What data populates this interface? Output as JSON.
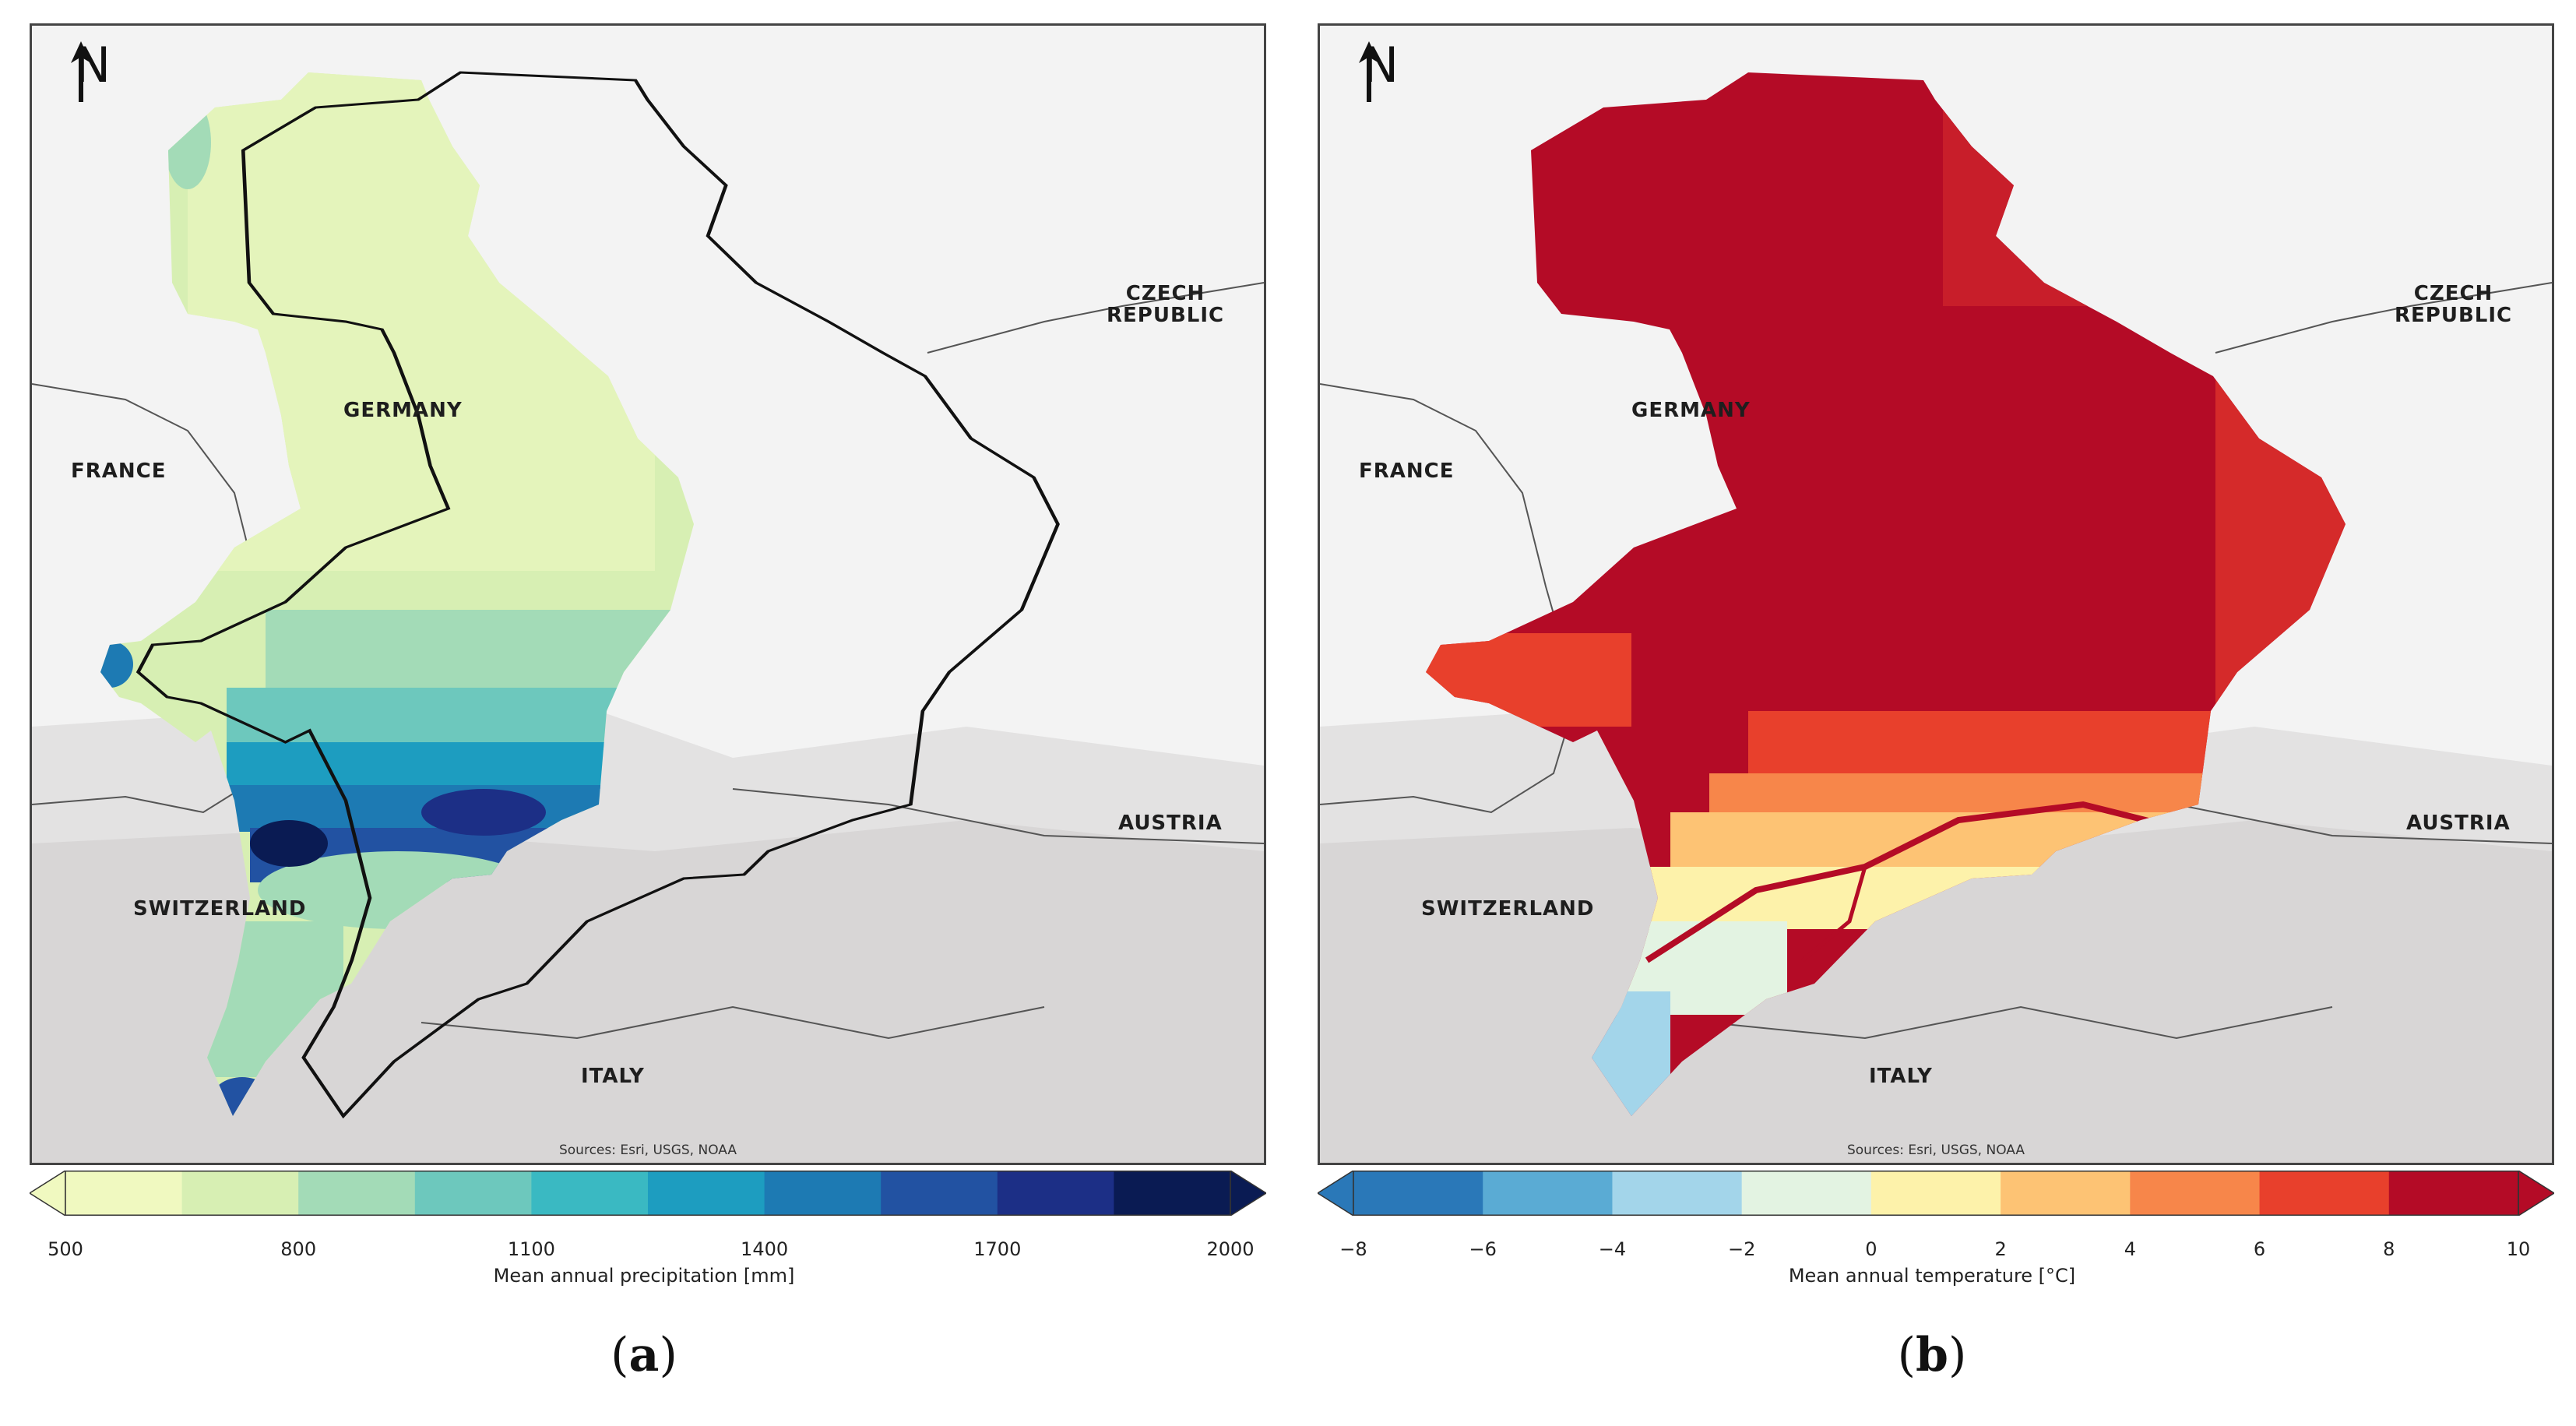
{
  "north_letter": "N",
  "sources_text": "Sources: Esri, USGS, NOAA",
  "countries": {
    "germany": "GERMANY",
    "france": "FRANCE",
    "czech_line1": "CZECH",
    "czech_line2": "REPUBLIC",
    "austria": "AUSTRIA",
    "switzerland": "SWITZERLAND",
    "italy": "ITALY"
  },
  "panel_a": {
    "label_letter": "a",
    "colorbar_title": "Mean annual precipitation [mm]",
    "ticks": [
      "500",
      "800",
      "1100",
      "1400",
      "1700",
      "2000"
    ],
    "colors": [
      "#f0f9c0",
      "#d7efb3",
      "#a3dbb7",
      "#6dc8bd",
      "#3ab9c2",
      "#1d9dc0",
      "#1d7ab3",
      "#2252a2",
      "#1c2f86",
      "#0a1b53"
    ]
  },
  "panel_b": {
    "label_letter": "b",
    "colorbar_title": "Mean annual temperature [°C]",
    "ticks": [
      "−8",
      "−6",
      "−4",
      "−2",
      "0",
      "2",
      "4",
      "6",
      "8",
      "10"
    ],
    "colors": [
      "#2a78b8",
      "#5aabd4",
      "#a3d5ea",
      "#e3f3e2",
      "#fdf2aa",
      "#fdc374",
      "#f7864a",
      "#e8402c",
      "#b40b26"
    ]
  }
}
